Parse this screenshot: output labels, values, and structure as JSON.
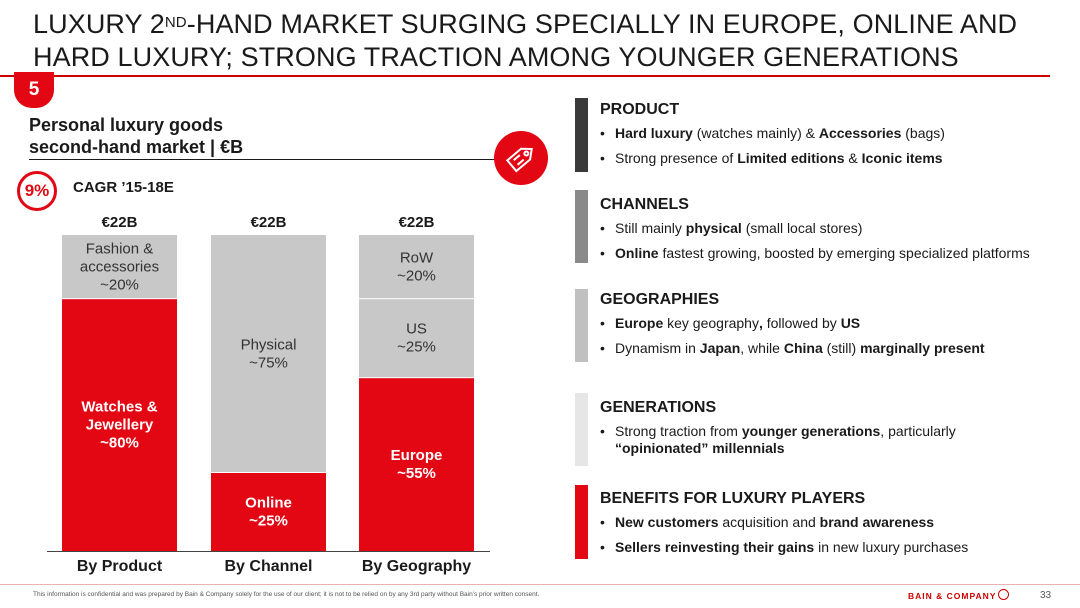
{
  "slide": {
    "title_line1_pre": "LUXURY 2",
    "title_line1_sup": "ND",
    "title_line1_post": "-HAND MARKET SURGING SPECIALLY IN EUROPE, ONLINE AND",
    "title_line2": "HARD LUXURY; STRONG TRACTION AMONG YOUNGER GENERATIONS",
    "section_number": "5",
    "subtitle_line1": "Personal luxury goods",
    "subtitle_line2": "second-hand market | €B",
    "cagr_value": "9%",
    "cagr_label": "CAGR ’15-18E",
    "footer_note": "This information is confidential and was prepared by Bain & Company solely for the use of our client; it is not to be relied on by any 3rd party without Bain's prior written consent.",
    "brand": "BAIN & COMPANY",
    "page_number": "33"
  },
  "colors": {
    "red": "#e30613",
    "grey": "#c8c8c8",
    "dark_grey": "#3a3a3a",
    "mid_grey": "#8a8a8a",
    "light_grey": "#c0c0c0",
    "very_light_grey": "#e6e6e6"
  },
  "chart_data": {
    "type": "bar",
    "stacked": true,
    "percent": true,
    "categories": [
      "By Product",
      "By Channel",
      "By Geography"
    ],
    "totals": [
      "€22B",
      "€22B",
      "€22B"
    ],
    "bars": [
      {
        "category": "By Product",
        "segments": [
          {
            "lines": [
              "Watches &",
              "Jewellery",
              "~80%"
            ],
            "value": 80,
            "color": "red"
          },
          {
            "lines": [
              "Fashion &",
              "accessories",
              "~20%"
            ],
            "value": 20,
            "color": "grey"
          }
        ]
      },
      {
        "category": "By Channel",
        "segments": [
          {
            "lines": [
              "Online",
              "~25%"
            ],
            "value": 25,
            "color": "red"
          },
          {
            "lines": [
              "Physical",
              "~75%"
            ],
            "value": 75,
            "color": "grey"
          }
        ]
      },
      {
        "category": "By Geography",
        "segments": [
          {
            "lines": [
              "Europe",
              "~55%"
            ],
            "value": 55,
            "color": "red"
          },
          {
            "lines": [
              "US",
              "~25%"
            ],
            "value": 25,
            "color": "grey"
          },
          {
            "lines": [
              "RoW",
              "~20%"
            ],
            "value": 20,
            "color": "grey"
          }
        ]
      }
    ]
  },
  "sections": [
    {
      "title": "PRODUCT",
      "color": "dark_grey",
      "bullets": [
        [
          {
            "t": "Hard luxury",
            "b": true
          },
          {
            "t": " (watches mainly) & "
          },
          {
            "t": "Accessories",
            "b": true
          },
          {
            "t": " (bags)"
          }
        ],
        [
          {
            "t": "Strong presence of "
          },
          {
            "t": "Limited editions",
            "b": true
          },
          {
            "t": " & "
          },
          {
            "t": "Iconic items",
            "b": true
          }
        ]
      ]
    },
    {
      "title": "CHANNELS",
      "color": "mid_grey",
      "bullets": [
        [
          {
            "t": "Still mainly "
          },
          {
            "t": "physical",
            "b": true
          },
          {
            "t": " (small local stores)"
          }
        ],
        [
          {
            "t": "Online",
            "b": true
          },
          {
            "t": " fastest growing, boosted by emerging specialized platforms"
          }
        ]
      ]
    },
    {
      "title": "GEOGRAPHIES",
      "color": "light_grey",
      "bullets": [
        [
          {
            "t": "Europe",
            "b": true
          },
          {
            "t": " key geography"
          },
          {
            "t": ",",
            "b": true
          },
          {
            "t": " followed by "
          },
          {
            "t": "US",
            "b": true
          }
        ],
        [
          {
            "t": "Dynamism in "
          },
          {
            "t": "Japan",
            "b": true
          },
          {
            "t": ", while "
          },
          {
            "t": "China",
            "b": true
          },
          {
            "t": " (still) "
          },
          {
            "t": "marginally present",
            "b": true
          }
        ]
      ]
    },
    {
      "title": "GENERATIONS",
      "color": "very_light_grey",
      "bullets": [
        [
          {
            "t": "Strong traction from "
          },
          {
            "t": "younger generations",
            "b": true
          },
          {
            "t": ", particularly"
          }
        ],
        [
          {
            "t": "“opinionated” millennials",
            "b": true
          }
        ]
      ]
    },
    {
      "title": "BENEFITS FOR LUXURY PLAYERS",
      "color": "red",
      "bullets": [
        [
          {
            "t": "New customers",
            "b": true
          },
          {
            "t": " acquisition and "
          },
          {
            "t": "brand awareness",
            "b": true
          }
        ],
        [
          {
            "t": "Sellers reinvesting their gains",
            "b": true
          },
          {
            "t": " in new luxury purchases"
          }
        ]
      ]
    }
  ]
}
